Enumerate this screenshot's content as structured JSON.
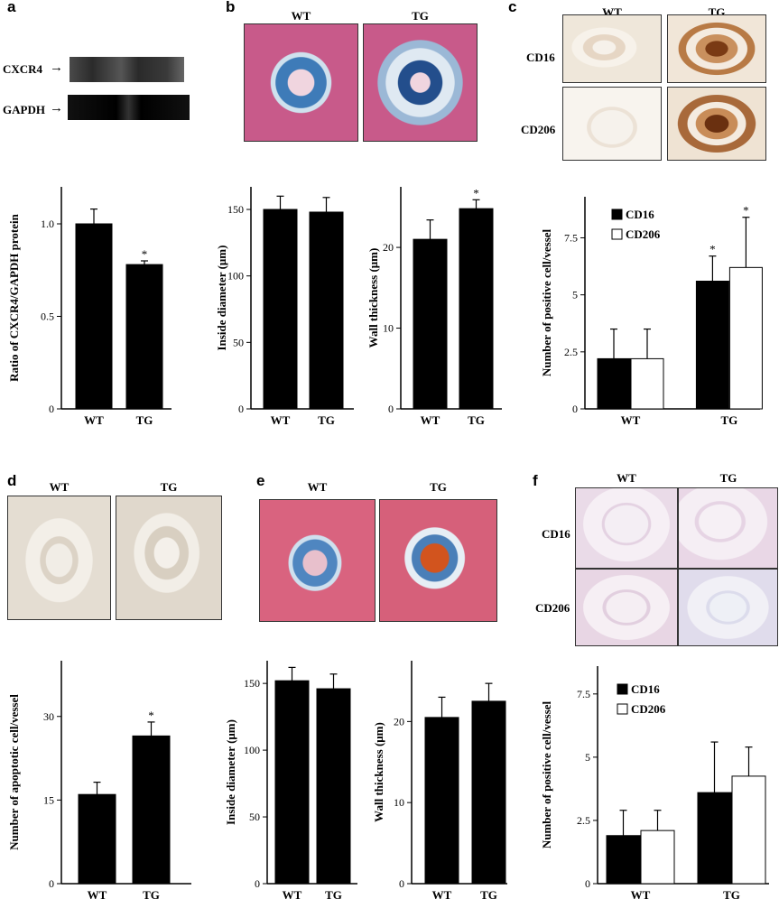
{
  "panels": {
    "a": {
      "label": "a",
      "blot": {
        "bands": [
          "CXCR4",
          "GAPDH"
        ]
      },
      "chart": {
        "type": "bar",
        "categories": [
          "WT",
          "TG"
        ],
        "values": [
          1.0,
          0.78
        ],
        "errors": [
          0.08,
          0.02
        ],
        "significant": [
          false,
          true
        ],
        "ylabel": "Ratio of CXCR4/GAPDH protein",
        "ylim": [
          0,
          1.2
        ],
        "ticks": [
          0,
          0.5,
          1.0
        ],
        "tick_labels": [
          "0",
          "0.5",
          "1.0"
        ]
      }
    },
    "b": {
      "label": "b",
      "images": [
        "WT",
        "TG"
      ],
      "chart_left": {
        "type": "bar",
        "categories": [
          "WT",
          "TG"
        ],
        "values": [
          150,
          148
        ],
        "errors": [
          10,
          11
        ],
        "significant": [
          false,
          false
        ],
        "ylabel": "Inside diameter (μm)",
        "ylim": [
          0,
          167
        ],
        "ticks": [
          0,
          50,
          100,
          150
        ],
        "tick_labels": [
          "0",
          "50",
          "100",
          "150"
        ]
      },
      "chart_right": {
        "type": "bar",
        "categories": [
          "WT",
          "TG"
        ],
        "values": [
          21,
          24.8
        ],
        "errors": [
          2.4,
          1.1
        ],
        "significant": [
          false,
          true
        ],
        "ylabel": "Wall thickness (μm)",
        "ylim": [
          0,
          27.5
        ],
        "ticks": [
          0,
          10,
          20
        ],
        "tick_labels": [
          "0",
          "10",
          "20"
        ]
      }
    },
    "c": {
      "label": "c",
      "col_headers": [
        "WT",
        "TG"
      ],
      "row_labels": [
        "CD16",
        "CD206"
      ],
      "chart": {
        "type": "bar",
        "categories": [
          "WT",
          "TG"
        ],
        "series": [
          {
            "name": "CD16",
            "values": [
              2.2,
              5.6
            ],
            "errors": [
              1.3,
              1.1
            ],
            "significant": [
              false,
              true
            ],
            "color": "#000000"
          },
          {
            "name": "CD206",
            "values": [
              2.2,
              6.2
            ],
            "errors": [
              1.3,
              2.2
            ],
            "significant": [
              false,
              true
            ],
            "color": "#ffffff"
          }
        ],
        "ylabel": "Number of positive cell/vessel",
        "ylim": [
          0,
          9.3
        ],
        "ticks": [
          0,
          2.5,
          5,
          7.5
        ],
        "tick_labels": [
          "0",
          "2.5",
          "5",
          "7.5"
        ],
        "legend": "top-left"
      }
    },
    "d": {
      "label": "d",
      "images": [
        "WT",
        "TG"
      ],
      "chart": {
        "type": "bar",
        "categories": [
          "WT",
          "TG"
        ],
        "values": [
          16,
          26.5
        ],
        "errors": [
          2.2,
          2.5
        ],
        "significant": [
          false,
          true
        ],
        "ylabel": "Number of apoptotic cell/vessel",
        "ylim": [
          0,
          40
        ],
        "ticks": [
          0,
          15,
          30
        ],
        "tick_labels": [
          "0",
          "15",
          "30"
        ]
      }
    },
    "e": {
      "label": "e",
      "images": [
        "WT",
        "TG"
      ],
      "chart_left": {
        "type": "bar",
        "categories": [
          "WT",
          "TG"
        ],
        "values": [
          152,
          146
        ],
        "errors": [
          10,
          11
        ],
        "significant": [
          false,
          false
        ],
        "ylabel": "Inside diameter (μm)",
        "ylim": [
          0,
          167
        ],
        "ticks": [
          0,
          50,
          100,
          150
        ],
        "tick_labels": [
          "0",
          "50",
          "100",
          "150"
        ]
      },
      "chart_right": {
        "type": "bar",
        "categories": [
          "WT",
          "TG"
        ],
        "values": [
          20.5,
          22.5
        ],
        "errors": [
          2.5,
          2.2
        ],
        "significant": [
          false,
          false
        ],
        "ylabel": "Wall thickness (μm)",
        "ylim": [
          0,
          27.5
        ],
        "ticks": [
          0,
          10,
          20
        ],
        "tick_labels": [
          "0",
          "10",
          "20"
        ]
      }
    },
    "f": {
      "label": "f",
      "col_headers": [
        "WT",
        "TG"
      ],
      "row_labels": [
        "CD16",
        "CD206"
      ],
      "chart": {
        "type": "bar",
        "categories": [
          "WT",
          "TG"
        ],
        "series": [
          {
            "name": "CD16",
            "values": [
              1.9,
              3.6
            ],
            "errors": [
              1.0,
              2.0
            ],
            "significant": [
              false,
              false
            ],
            "color": "#000000"
          },
          {
            "name": "CD206",
            "values": [
              2.1,
              4.25
            ],
            "errors": [
              0.8,
              1.15
            ],
            "significant": [
              false,
              false
            ],
            "color": "#ffffff"
          }
        ],
        "ylabel": "Number of positive cell/vessel",
        "ylim": [
          0,
          8.6
        ],
        "ticks": [
          0,
          2.5,
          5,
          7.5
        ],
        "tick_labels": [
          "0",
          "2.5",
          "5",
          "7.5"
        ],
        "legend": "top-left"
      }
    }
  },
  "significance_marker": "*",
  "colors": {
    "bar_fill": "#000000",
    "open_bar_fill": "#ffffff",
    "trichrome_blue": "#3e7bb8",
    "trichrome_red": "#c85a8a",
    "ihc_brown": "#8a4a1a",
    "tissue_bg": "#f2ece2"
  }
}
